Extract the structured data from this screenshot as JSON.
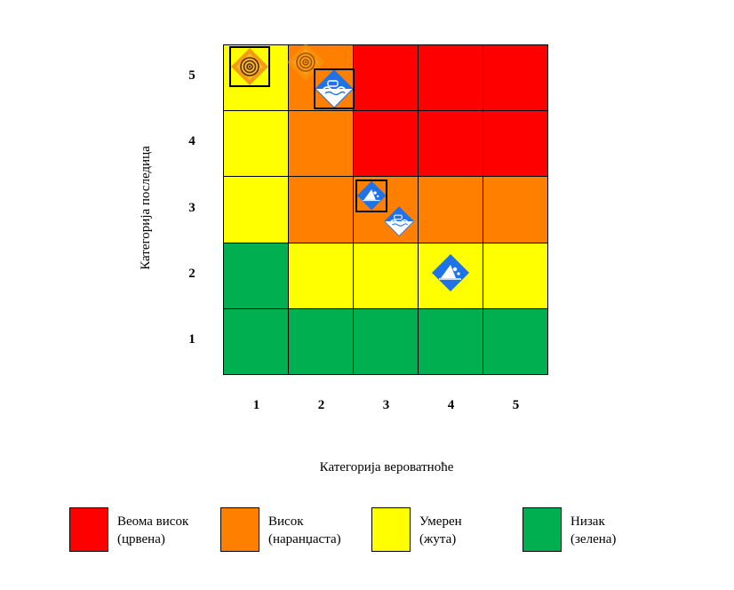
{
  "chart_data": {
    "type": "heatmap",
    "title": "",
    "xlabel": "Категорија вероватноће",
    "ylabel": "Категорија последица",
    "x_categories": [
      "1",
      "2",
      "3",
      "4",
      "5"
    ],
    "y_categories": [
      "1",
      "2",
      "3",
      "4",
      "5"
    ],
    "grid": [
      [
        "green",
        "green",
        "green",
        "green",
        "green"
      ],
      [
        "green",
        "yellow",
        "yellow",
        "yellow",
        "yellow"
      ],
      [
        "yellow",
        "orange",
        "orange",
        "orange",
        "orange"
      ],
      [
        "yellow",
        "orange",
        "red",
        "red",
        "red"
      ],
      [
        "yellow",
        "orange",
        "red",
        "red",
        "red"
      ]
    ],
    "colors": {
      "red": "#ff0000",
      "orange": "#ff8000",
      "yellow": "#ffff00",
      "green": "#00b050"
    },
    "markers": [
      {
        "icon": "target-hazard-icon",
        "x": 1,
        "y": 5,
        "boxed": true,
        "faded": false
      },
      {
        "icon": "target-hazard-icon",
        "x": 2,
        "y": 5,
        "boxed": false,
        "faded": true
      },
      {
        "icon": "flood-hazard-icon",
        "x": 2,
        "y": 5,
        "boxed": true,
        "faded": false
      },
      {
        "icon": "landslide-hazard-icon",
        "x": 3,
        "y": 3,
        "boxed": true,
        "faded": false
      },
      {
        "icon": "flood-hazard-icon",
        "x": 3,
        "y": 3,
        "boxed": false,
        "faded": false
      },
      {
        "icon": "landslide-hazard-icon",
        "x": 4,
        "y": 2,
        "boxed": false,
        "faded": false
      }
    ]
  },
  "legend": [
    {
      "color": "red",
      "title": "Веома висок",
      "subtitle": "(црвена)"
    },
    {
      "color": "orange",
      "title": "Висок",
      "subtitle": "(наранџаста)"
    },
    {
      "color": "yellow",
      "title": "Умерен",
      "subtitle": "(жута)"
    },
    {
      "color": "green",
      "title": "Низак",
      "subtitle": "(зелена)"
    }
  ]
}
